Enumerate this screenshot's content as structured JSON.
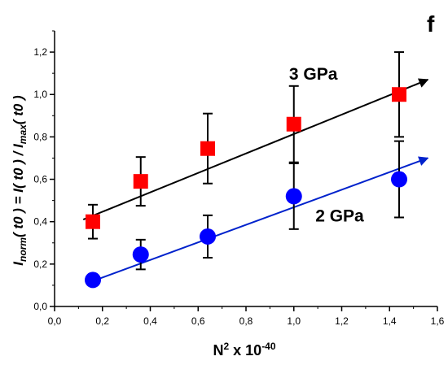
{
  "panel_label": "f",
  "chart_data": {
    "type": "scatter",
    "title": "",
    "xlabel_base": "N",
    "xlabel_sup": "2",
    "xlabel_mid": " x 10",
    "xlabel_sup2": "-40",
    "ylabel": {
      "part1": "I",
      "part2_sub": "norm",
      "part3": "( t0 ) = I( t0 ) / I",
      "part4_sub": "max",
      "part5": "( t0 )"
    },
    "xlim": [
      0.0,
      1.6
    ],
    "ylim": [
      0.0,
      1.3
    ],
    "x_ticks": [
      "0,0",
      "0,2",
      "0,4",
      "0,6",
      "0,8",
      "1,0",
      "1,2",
      "1,4",
      "1,6"
    ],
    "y_ticks": [
      "0,0",
      "0,2",
      "0,4",
      "0,6",
      "0,8",
      "1,0",
      "1,2"
    ],
    "series": [
      {
        "name": "3 GPa",
        "marker": "square",
        "color": "#ff0000",
        "fit_color": "#000000",
        "points": [
          {
            "x": 0.16,
            "y": 0.4,
            "err": 0.08
          },
          {
            "x": 0.36,
            "y": 0.59,
            "err": 0.115
          },
          {
            "x": 0.64,
            "y": 0.745,
            "err": 0.165
          },
          {
            "x": 1.0,
            "y": 0.86,
            "err": 0.18
          },
          {
            "x": 1.44,
            "y": 1.0,
            "err": 0.2
          }
        ],
        "fit": {
          "x1": 0.12,
          "y1": 0.41,
          "x2": 1.56,
          "y2": 1.07
        }
      },
      {
        "name": "2 GPa",
        "marker": "circle",
        "color": "#0000ff",
        "fit_color": "#0022cc",
        "points": [
          {
            "x": 0.16,
            "y": 0.125,
            "err": 0.02
          },
          {
            "x": 0.36,
            "y": 0.245,
            "err": 0.07
          },
          {
            "x": 0.64,
            "y": 0.33,
            "err": 0.1
          },
          {
            "x": 1.0,
            "y": 0.52,
            "err": 0.155
          },
          {
            "x": 1.44,
            "y": 0.6,
            "err": 0.18
          }
        ],
        "fit": {
          "x1": 0.16,
          "y1": 0.12,
          "x2": 1.56,
          "y2": 0.7
        }
      }
    ],
    "annotations": [
      {
        "text": "3 GPa",
        "x": 0.98,
        "y": 1.07
      },
      {
        "text": "2 GPa",
        "x": 1.09,
        "y": 0.4
      }
    ]
  }
}
